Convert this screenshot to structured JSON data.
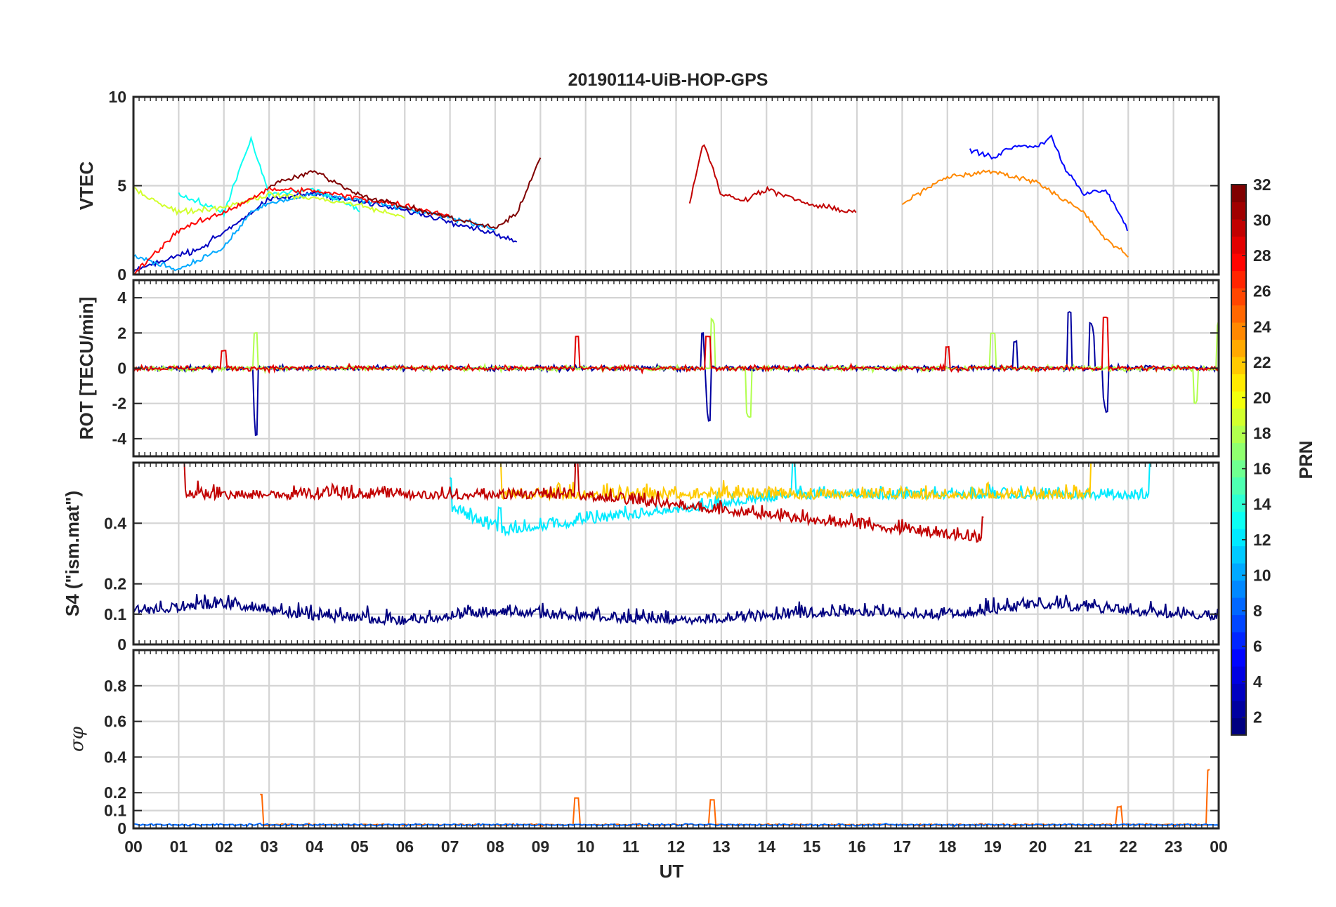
{
  "chart_data": {
    "type": "line",
    "title": "20190114-UiB-HOP-GPS",
    "xlabel": "UT",
    "x_tick_labels": [
      "00",
      "01",
      "02",
      "03",
      "04",
      "05",
      "06",
      "07",
      "08",
      "09",
      "10",
      "11",
      "12",
      "13",
      "14",
      "15",
      "16",
      "17",
      "18",
      "19",
      "20",
      "21",
      "22",
      "23",
      "00"
    ],
    "x_range_hours": [
      0,
      24
    ],
    "grid": true,
    "colorbar": {
      "label": "PRN",
      "range": [
        1,
        32
      ],
      "tick_labels": [
        "2",
        "4",
        "6",
        "8",
        "10",
        "12",
        "14",
        "16",
        "18",
        "20",
        "22",
        "24",
        "26",
        "28",
        "30",
        "32"
      ],
      "colormap": "jet"
    },
    "panels": [
      {
        "name": "vtec",
        "ylabel": "VTEC",
        "ylim": [
          0,
          10
        ],
        "y_ticks": [
          0,
          5,
          10
        ],
        "y_tick_labels": [
          "0",
          "5",
          "10"
        ],
        "series": [
          {
            "prn": 3,
            "hours": [
              0.0,
              1.5,
              3.0,
              4.0,
              5.0,
              6.0,
              7.0,
              8.0,
              8.5
            ],
            "values": [
              0.2,
              1.5,
              4.2,
              4.6,
              4.1,
              3.6,
              3.0,
              2.3,
              1.8
            ]
          },
          {
            "prn": 5,
            "hours": [
              18.5,
              19.0,
              19.5,
              20.0,
              20.3,
              20.6,
              21.0,
              21.5,
              22.0
            ],
            "values": [
              7.0,
              6.6,
              7.3,
              7.2,
              7.8,
              6.0,
              4.5,
              4.8,
              2.5
            ]
          },
          {
            "prn": 10,
            "hours": [
              0.0,
              1.0,
              2.0,
              2.6,
              3.0,
              4.0,
              5.0,
              6.0,
              7.0,
              8.0
            ],
            "values": [
              1.0,
              0.3,
              1.5,
              3.5,
              4.0,
              4.5,
              4.2,
              3.7,
              3.2,
              2.6
            ]
          },
          {
            "prn": 13,
            "hours": [
              1.0,
              2.0,
              2.6,
              3.0,
              4.0,
              5.0
            ],
            "values": [
              4.5,
              3.5,
              7.6,
              4.5,
              4.8,
              3.6
            ]
          },
          {
            "prn": 19,
            "hours": [
              0.0,
              1.0,
              2.0,
              3.0,
              4.0,
              5.0,
              6.0
            ],
            "values": [
              4.8,
              3.5,
              3.8,
              4.5,
              4.3,
              3.9,
              3.2
            ]
          },
          {
            "prn": 24,
            "hours": [
              17.0,
              18.0,
              19.0,
              20.0,
              21.0,
              21.5,
              22.0
            ],
            "values": [
              4.0,
              5.5,
              5.8,
              5.2,
              3.5,
              2.0,
              1.0
            ]
          },
          {
            "prn": 28,
            "hours": [
              0.0,
              1.0,
              2.0,
              3.0,
              4.0,
              5.0,
              6.0,
              7.0
            ],
            "values": [
              0.0,
              2.5,
              3.5,
              4.8,
              4.7,
              4.3,
              3.9,
              3.3
            ]
          },
          {
            "prn": 30,
            "hours": [
              12.3,
              12.6,
              12.8,
              13.0,
              13.5,
              14.0,
              15.0,
              16.0
            ],
            "values": [
              4.0,
              7.5,
              6.0,
              4.5,
              4.2,
              4.8,
              3.9,
              3.5
            ]
          },
          {
            "prn": 32,
            "hours": [
              3.0,
              4.0,
              5.0,
              6.0,
              7.0,
              8.0,
              8.5,
              9.0
            ],
            "values": [
              5.0,
              5.8,
              4.5,
              3.8,
              3.2,
              2.6,
              3.5,
              6.6
            ]
          }
        ]
      },
      {
        "name": "rot",
        "ylabel": "ROT [TECU/min]",
        "ylim": [
          -5,
          5
        ],
        "y_ticks": [
          -4,
          -2,
          0,
          2,
          4
        ],
        "y_tick_labels": [
          "-4",
          "-2",
          "0",
          "2",
          "4"
        ],
        "series": [
          {
            "prn": 2,
            "hours": [
              0.0,
              2.6,
              2.7,
              12.6,
              12.7,
              19.5,
              20.7,
              21.2,
              21.5,
              24.0
            ],
            "values": [
              0.0,
              0.0,
              -3.8,
              2.0,
              -3.0,
              1.5,
              3.2,
              2.5,
              -2.5,
              0.0
            ]
          },
          {
            "prn": 18,
            "hours": [
              0.0,
              2.7,
              12.8,
              13.6,
              19.0,
              23.5,
              24.0
            ],
            "values": [
              0.0,
              2.0,
              2.8,
              -2.8,
              2.0,
              -2.0,
              2.7
            ]
          },
          {
            "prn": 29,
            "hours": [
              0.0,
              2.0,
              9.8,
              12.7,
              18.0,
              21.5,
              24.0
            ],
            "values": [
              0.0,
              1.0,
              1.8,
              1.8,
              1.2,
              2.9,
              0.0
            ]
          }
        ]
      },
      {
        "name": "s4",
        "ylabel": "S4 (\"ism.mat\")",
        "ylim": [
          0,
          0.6
        ],
        "y_ticks": [
          0,
          0.1,
          0.2,
          0.4
        ],
        "y_tick_labels": [
          "0",
          "0.1",
          "0.2",
          "0.4"
        ],
        "series": [
          {
            "prn": 1,
            "hours": [
              0.0,
              2.0,
              4.0,
              6.0,
              8.0,
              10.0,
              12.0,
              14.0,
              16.0,
              18.0,
              20.0,
              22.0,
              24.0
            ],
            "values": [
              0.12,
              0.15,
              0.1,
              0.08,
              0.12,
              0.1,
              0.08,
              0.1,
              0.12,
              0.1,
              0.15,
              0.12,
              0.1
            ]
          },
          {
            "prn": 12,
            "hours": [
              7.0,
              8.1,
              14.6,
              22.5
            ],
            "values": [
              0.55,
              0.45,
              0.6,
              0.6
            ]
          },
          {
            "prn": 22,
            "hours": [
              8.1,
              21.2
            ],
            "values": [
              0.6,
              0.6
            ]
          },
          {
            "prn": 30,
            "hours": [
              1.1,
              9.8,
              18.8
            ],
            "values": [
              0.6,
              0.6,
              0.42
            ]
          }
        ]
      },
      {
        "name": "sigma_phi",
        "ylabel": "σφ",
        "ylim": [
          0,
          1.0
        ],
        "y_ticks": [
          0,
          0.1,
          0.2,
          0.4,
          0.6,
          0.8
        ],
        "y_tick_labels": [
          "0",
          "0.1",
          "0.2",
          "0.4",
          "0.6",
          "0.8"
        ],
        "series": [
          {
            "prn": 25,
            "hours": [
              2.8,
              9.8,
              12.8,
              21.8,
              23.8
            ],
            "values": [
              0.19,
              0.17,
              0.16,
              0.12,
              0.33
            ]
          },
          {
            "prn": 8,
            "hours": [
              0.0,
              6.0,
              12.0,
              18.0,
              24.0
            ],
            "values": [
              0.02,
              0.03,
              0.02,
              0.04,
              0.02
            ]
          }
        ]
      }
    ]
  }
}
